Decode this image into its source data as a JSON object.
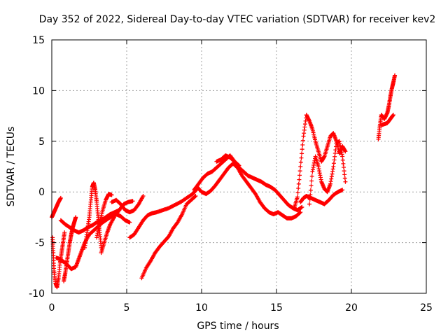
{
  "chart_data": {
    "type": "scatter",
    "title": "Day 352 of 2022, Sidereal Day-to-day VTEC variation (SDTVAR) for receiver kev2",
    "xlabel": "GPS time / hours",
    "ylabel": "SDTVAR / TECUs",
    "xlim": [
      0,
      25
    ],
    "ylim": [
      -10,
      15
    ],
    "xticks": [
      0,
      5,
      10,
      15,
      20,
      25
    ],
    "yticks": [
      -10,
      -5,
      0,
      5,
      10,
      15
    ],
    "grid": true,
    "marker": "+",
    "color": "#ff0000",
    "series": [
      {
        "name": "SDTVAR",
        "segments": [
          [
            [
              0.0,
              -2.5
            ],
            [
              0.15,
              -2.0
            ],
            [
              0.3,
              -1.5
            ],
            [
              0.45,
              -1.0
            ],
            [
              0.6,
              -0.6
            ]
          ],
          [
            [
              0.05,
              -4.5
            ],
            [
              0.1,
              -6.0
            ],
            [
              0.15,
              -7.8
            ],
            [
              0.25,
              -9.0
            ],
            [
              0.35,
              -9.4
            ],
            [
              0.45,
              -8.5
            ],
            [
              0.55,
              -7.0
            ],
            [
              0.65,
              -6.0
            ],
            [
              0.75,
              -5.0
            ],
            [
              0.85,
              -4.0
            ]
          ],
          [
            [
              0.3,
              -6.5
            ],
            [
              0.5,
              -6.6
            ],
            [
              0.7,
              -6.8
            ],
            [
              0.9,
              -7.0
            ],
            [
              1.1,
              -7.3
            ],
            [
              1.3,
              -7.6
            ],
            [
              1.6,
              -7.4
            ],
            [
              1.8,
              -6.6
            ],
            [
              2.0,
              -5.8
            ],
            [
              2.2,
              -5.0
            ],
            [
              2.5,
              -4.2
            ],
            [
              2.8,
              -3.8
            ],
            [
              3.1,
              -3.4
            ],
            [
              3.4,
              -3.0
            ],
            [
              3.7,
              -2.7
            ],
            [
              4.0,
              -2.4
            ],
            [
              4.3,
              -2.2
            ],
            [
              4.6,
              -2.4
            ],
            [
              4.9,
              -2.8
            ],
            [
              5.2,
              -3.0
            ]
          ],
          [
            [
              0.6,
              -2.8
            ],
            [
              0.9,
              -3.2
            ],
            [
              1.2,
              -3.5
            ],
            [
              1.5,
              -3.8
            ],
            [
              1.8,
              -4.0
            ],
            [
              2.1,
              -3.8
            ],
            [
              2.4,
              -3.5
            ],
            [
              2.7,
              -3.3
            ],
            [
              3.0,
              -3.0
            ],
            [
              3.3,
              -2.8
            ],
            [
              3.6,
              -2.5
            ],
            [
              3.9,
              -2.2
            ],
            [
              4.2,
              -2.0
            ],
            [
              4.5,
              -1.8
            ]
          ],
          [
            [
              0.8,
              -8.8
            ],
            [
              0.9,
              -8.0
            ],
            [
              1.0,
              -7.0
            ],
            [
              1.1,
              -6.0
            ],
            [
              1.2,
              -5.0
            ],
            [
              1.3,
              -4.2
            ],
            [
              1.4,
              -3.5
            ],
            [
              1.5,
              -3.0
            ],
            [
              1.6,
              -2.5
            ]
          ],
          [
            [
              2.2,
              -5.5
            ],
            [
              2.35,
              -4.0
            ],
            [
              2.5,
              -2.5
            ],
            [
              2.6,
              -1.0
            ],
            [
              2.7,
              0.5
            ],
            [
              2.8,
              0.9
            ],
            [
              2.9,
              0.2
            ],
            [
              3.0,
              -1.0
            ],
            [
              3.1,
              -2.5
            ],
            [
              3.2,
              -4.0
            ],
            [
              3.3,
              -5.5
            ]
          ],
          [
            [
              3.0,
              -4.5
            ],
            [
              3.2,
              -3.0
            ],
            [
              3.4,
              -1.8
            ],
            [
              3.6,
              -0.8
            ],
            [
              3.8,
              -0.2
            ],
            [
              4.0,
              -0.3
            ]
          ],
          [
            [
              3.3,
              -6.0
            ],
            [
              3.5,
              -5.0
            ],
            [
              3.7,
              -4.0
            ],
            [
              3.9,
              -3.2
            ],
            [
              4.2,
              -2.4
            ],
            [
              4.5,
              -1.8
            ],
            [
              4.8,
              -1.2
            ],
            [
              5.1,
              -1.0
            ],
            [
              5.4,
              -0.9
            ]
          ],
          [
            [
              4.0,
              -1.0
            ],
            [
              4.3,
              -0.8
            ],
            [
              4.6,
              -1.2
            ],
            [
              4.9,
              -1.8
            ],
            [
              5.2,
              -2.0
            ],
            [
              5.5,
              -1.8
            ],
            [
              5.8,
              -1.2
            ],
            [
              6.1,
              -0.4
            ]
          ],
          [
            [
              5.2,
              -4.5
            ],
            [
              5.5,
              -4.2
            ],
            [
              5.8,
              -3.5
            ],
            [
              6.1,
              -2.8
            ],
            [
              6.4,
              -2.3
            ],
            [
              6.7,
              -2.1
            ],
            [
              7.0,
              -2.0
            ],
            [
              7.4,
              -1.8
            ],
            [
              7.8,
              -1.6
            ],
            [
              8.2,
              -1.3
            ],
            [
              8.6,
              -1.0
            ],
            [
              9.0,
              -0.6
            ],
            [
              9.4,
              -0.2
            ],
            [
              9.7,
              0.3
            ]
          ],
          [
            [
              6.0,
              -8.5
            ],
            [
              6.3,
              -7.5
            ],
            [
              6.6,
              -6.8
            ],
            [
              6.9,
              -6.0
            ],
            [
              7.2,
              -5.4
            ],
            [
              7.5,
              -4.9
            ],
            [
              7.8,
              -4.4
            ],
            [
              8.1,
              -3.6
            ],
            [
              8.4,
              -3.0
            ],
            [
              8.7,
              -2.2
            ],
            [
              9.0,
              -1.2
            ],
            [
              9.3,
              -0.8
            ],
            [
              9.6,
              -0.4
            ]
          ],
          [
            [
              9.5,
              0.2
            ],
            [
              9.8,
              0.8
            ],
            [
              10.1,
              1.4
            ],
            [
              10.4,
              1.8
            ],
            [
              10.7,
              2.0
            ],
            [
              11.0,
              2.4
            ],
            [
              11.3,
              2.8
            ],
            [
              11.6,
              3.2
            ],
            [
              11.9,
              3.6
            ],
            [
              12.2,
              3.0
            ],
            [
              12.5,
              2.4
            ],
            [
              12.8,
              2.0
            ],
            [
              13.1,
              1.6
            ],
            [
              13.4,
              1.4
            ],
            [
              13.7,
              1.2
            ],
            [
              14.0,
              1.0
            ],
            [
              14.3,
              0.7
            ],
            [
              14.6,
              0.5
            ],
            [
              14.9,
              0.2
            ],
            [
              15.2,
              -0.3
            ],
            [
              15.5,
              -0.8
            ],
            [
              15.8,
              -1.3
            ],
            [
              16.1,
              -1.6
            ],
            [
              16.4,
              -1.8
            ],
            [
              16.7,
              -1.5
            ]
          ],
          [
            [
              9.7,
              0.5
            ],
            [
              10.0,
              0.0
            ],
            [
              10.3,
              -0.2
            ],
            [
              10.6,
              0.1
            ],
            [
              10.9,
              0.6
            ],
            [
              11.2,
              1.2
            ],
            [
              11.5,
              1.8
            ],
            [
              11.8,
              2.4
            ],
            [
              12.1,
              2.8
            ],
            [
              12.4,
              2.4
            ],
            [
              12.7,
              1.6
            ],
            [
              13.0,
              1.0
            ],
            [
              13.3,
              0.4
            ],
            [
              13.6,
              -0.2
            ],
            [
              13.9,
              -1.0
            ],
            [
              14.2,
              -1.6
            ],
            [
              14.5,
              -2.0
            ],
            [
              14.8,
              -2.2
            ],
            [
              15.1,
              -2.0
            ],
            [
              15.4,
              -2.3
            ],
            [
              15.7,
              -2.6
            ],
            [
              16.0,
              -2.6
            ],
            [
              16.3,
              -2.4
            ],
            [
              16.6,
              -2.0
            ]
          ],
          [
            [
              11.0,
              3.0
            ],
            [
              11.3,
              3.2
            ],
            [
              11.6,
              3.6
            ],
            [
              11.9,
              3.4
            ],
            [
              12.2,
              3.0
            ],
            [
              12.5,
              2.6
            ]
          ],
          [
            [
              16.2,
              -1.5
            ],
            [
              16.4,
              -0.5
            ],
            [
              16.6,
              2.5
            ],
            [
              16.8,
              5.5
            ],
            [
              17.0,
              7.6
            ],
            [
              17.2,
              7.0
            ],
            [
              17.4,
              6.2
            ],
            [
              17.6,
              5.0
            ],
            [
              17.8,
              4.0
            ],
            [
              18.0,
              3.0
            ],
            [
              18.2,
              3.5
            ],
            [
              18.4,
              4.5
            ],
            [
              18.6,
              5.5
            ],
            [
              18.8,
              5.8
            ],
            [
              19.0,
              5.0
            ],
            [
              19.2,
              3.8
            ],
            [
              19.4,
              4.5
            ],
            [
              19.6,
              4.0
            ]
          ],
          [
            [
              16.6,
              -1.0
            ],
            [
              16.8,
              -0.6
            ],
            [
              17.0,
              -0.4
            ],
            [
              17.3,
              -0.6
            ],
            [
              17.6,
              -0.8
            ],
            [
              17.9,
              -1.0
            ],
            [
              18.2,
              -1.2
            ],
            [
              18.5,
              -0.8
            ],
            [
              18.8,
              -0.3
            ],
            [
              19.1,
              0.0
            ],
            [
              19.4,
              0.2
            ]
          ],
          [
            [
              17.2,
              -1.2
            ],
            [
              17.4,
              2.0
            ],
            [
              17.6,
              3.5
            ],
            [
              17.8,
              2.5
            ],
            [
              18.0,
              1.0
            ],
            [
              18.2,
              0.3
            ],
            [
              18.4,
              0.0
            ],
            [
              18.6,
              0.8
            ],
            [
              18.8,
              2.5
            ],
            [
              19.0,
              4.8
            ],
            [
              19.2,
              5.0
            ],
            [
              19.4,
              3.5
            ],
            [
              19.6,
              1.0
            ]
          ],
          [
            [
              21.8,
              5.2
            ],
            [
              21.9,
              6.5
            ],
            [
              22.0,
              7.6
            ],
            [
              22.2,
              7.2
            ],
            [
              22.4,
              7.8
            ],
            [
              22.5,
              8.5
            ],
            [
              22.6,
              9.4
            ],
            [
              22.7,
              10.2
            ],
            [
              22.8,
              10.8
            ],
            [
              22.9,
              11.5
            ]
          ],
          [
            [
              22.0,
              6.6
            ],
            [
              22.2,
              6.7
            ],
            [
              22.4,
              6.8
            ],
            [
              22.6,
              7.2
            ],
            [
              22.8,
              7.6
            ]
          ]
        ]
      }
    ]
  }
}
